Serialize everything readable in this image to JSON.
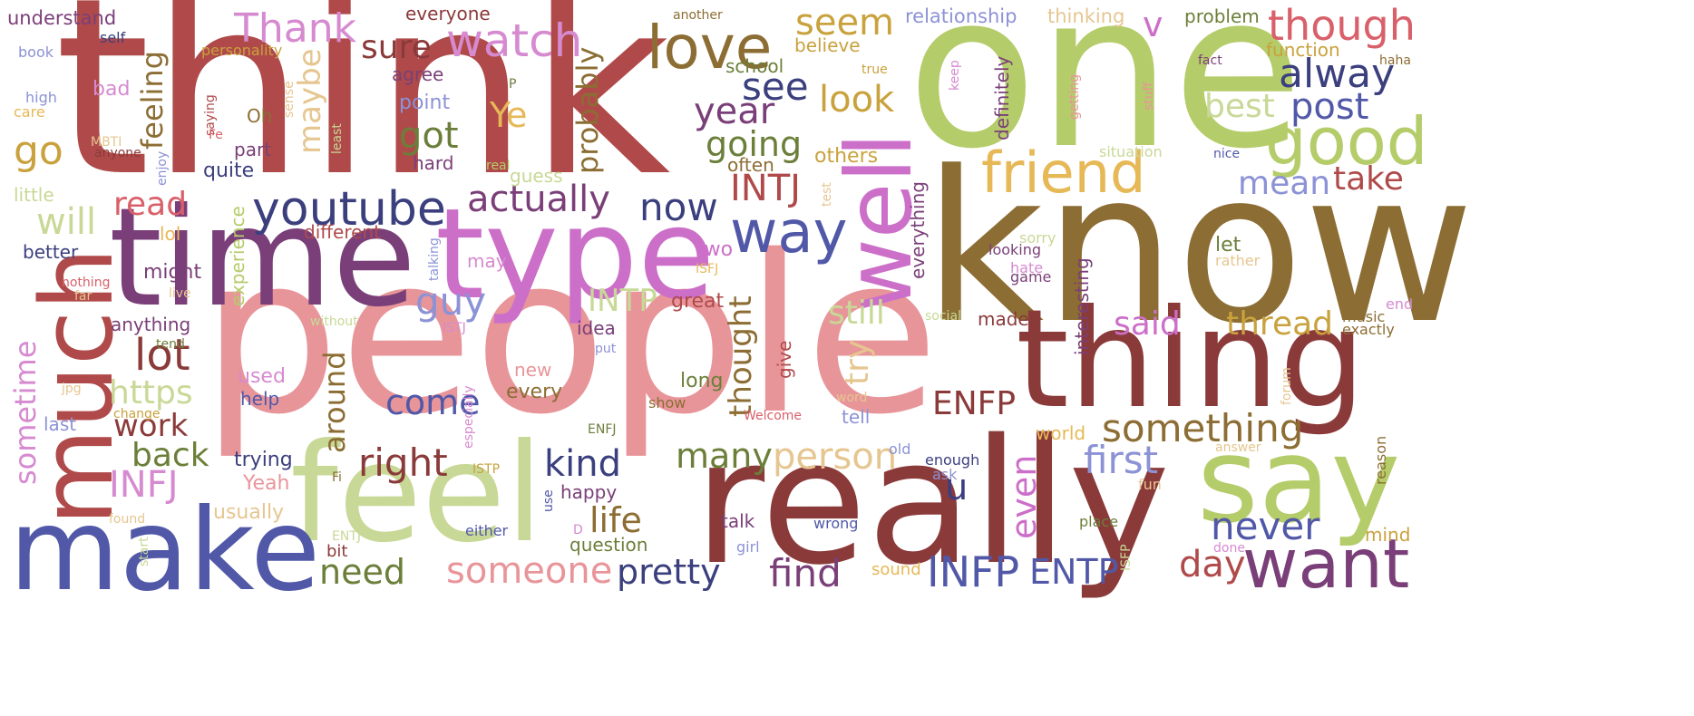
{
  "title": "Word cloud",
  "palette": {
    "maroon": "#8B3A3A",
    "red": "#B04A4A",
    "pink": "#E8959A",
    "rose": "#D9606A",
    "olive_green": "#B5CC6A",
    "pale_green": "#C8D896",
    "dark_olive": "#6B7F3A",
    "brown": "#8C6D33",
    "mustard": "#C9A23D",
    "gold": "#E6B856",
    "tan": "#E6C690",
    "navy": "#3B3F7E",
    "blue": "#5158A8",
    "periwinkle": "#8C92D6",
    "purple": "#7A3F78",
    "orchid": "#CC6FC8",
    "lavender": "#D68AD0"
  },
  "words": [
    {
      "text": "think",
      "color": "#B04A4A"
    },
    {
      "text": "one",
      "color": "#B5CC6A"
    },
    {
      "text": "know",
      "color": "#8C6D33"
    },
    {
      "text": "people",
      "color": "#E8959A"
    },
    {
      "text": "time",
      "color": "#7A3F78"
    },
    {
      "text": "type",
      "color": "#CC6FC8"
    },
    {
      "text": "really",
      "color": "#8B3A3A"
    },
    {
      "text": "thing",
      "color": "#8B3A3A"
    },
    {
      "text": "feel",
      "color": "#C8D896"
    },
    {
      "text": "make",
      "color": "#5158A8"
    },
    {
      "text": "much",
      "color": "#B04A4A"
    },
    {
      "text": "say",
      "color": "#B5CC6A"
    },
    {
      "text": "well",
      "color": "#CC6FC8"
    },
    {
      "text": "want",
      "color": "#7A3F78"
    },
    {
      "text": "love",
      "color": "#8C6D33"
    },
    {
      "text": "watch",
      "color": "#D68AD0"
    },
    {
      "text": "youtube",
      "color": "#3B3F7E"
    },
    {
      "text": "friend",
      "color": "#E6B856"
    },
    {
      "text": "good",
      "color": "#B5CC6A"
    },
    {
      "text": "way",
      "color": "#5158A8"
    },
    {
      "text": "actually",
      "color": "#7A3F78"
    },
    {
      "text": "something",
      "color": "#8C6D33"
    },
    {
      "text": "someone",
      "color": "#E8959A"
    },
    {
      "text": "pretty",
      "color": "#3B3F7E"
    },
    {
      "text": "find",
      "color": "#7A3F78"
    },
    {
      "text": "INFP",
      "color": "#5158A8"
    },
    {
      "text": "ENTP",
      "color": "#5158A8"
    },
    {
      "text": "day",
      "color": "#B04A4A"
    },
    {
      "text": "never",
      "color": "#5158A8"
    },
    {
      "text": "first",
      "color": "#8C92D6"
    },
    {
      "text": "person",
      "color": "#E6C690"
    },
    {
      "text": "many",
      "color": "#6B7F3A"
    },
    {
      "text": "kind",
      "color": "#3B3F7E"
    },
    {
      "text": "right",
      "color": "#8B3A3A"
    },
    {
      "text": "life",
      "color": "#8C6D33"
    },
    {
      "text": "need",
      "color": "#6B7F3A"
    },
    {
      "text": "INFJ",
      "color": "#D68AD0"
    },
    {
      "text": "back",
      "color": "#6B7F3A"
    },
    {
      "text": "work",
      "color": "#8B3A3A"
    },
    {
      "text": "come",
      "color": "#5158A8"
    },
    {
      "text": "https",
      "color": "#C8D896"
    },
    {
      "text": "lot",
      "color": "#8B3A3A"
    },
    {
      "text": "read",
      "color": "#D9606A"
    },
    {
      "text": "will",
      "color": "#C8D896"
    },
    {
      "text": "go",
      "color": "#C9A23D"
    },
    {
      "text": "feeling",
      "color": "#8C6D33"
    },
    {
      "text": "Thank",
      "color": "#D68AD0"
    },
    {
      "text": "sure",
      "color": "#8B3A3A"
    },
    {
      "text": "maybe",
      "color": "#E6C690"
    },
    {
      "text": "got",
      "color": "#6B7F3A"
    },
    {
      "text": "probably",
      "color": "#8C6D33"
    },
    {
      "text": "Ye",
      "color": "#E6B856"
    },
    {
      "text": "going",
      "color": "#6B7F3A"
    },
    {
      "text": "see",
      "color": "#3B3F7E"
    },
    {
      "text": "year",
      "color": "#7A3F78"
    },
    {
      "text": "look",
      "color": "#C9A23D"
    },
    {
      "text": "seem",
      "color": "#C9A23D"
    },
    {
      "text": "INTJ",
      "color": "#B04A4A"
    },
    {
      "text": "now",
      "color": "#3B3F7E"
    },
    {
      "text": "guy",
      "color": "#8C92D6"
    },
    {
      "text": "INTP",
      "color": "#C8D896"
    },
    {
      "text": "thought",
      "color": "#8C6D33"
    },
    {
      "text": "still",
      "color": "#C8D896"
    },
    {
      "text": "try",
      "color": "#E6C690"
    },
    {
      "text": "around",
      "color": "#8C6D33"
    },
    {
      "text": "ENFP",
      "color": "#8B3A3A"
    },
    {
      "text": "even",
      "color": "#CC6FC8"
    },
    {
      "text": "said",
      "color": "#CC6FC8"
    },
    {
      "text": "thread",
      "color": "#C9A23D"
    },
    {
      "text": "u",
      "color": "#3B3F7E"
    },
    {
      "text": "though",
      "color": "#D9606A"
    },
    {
      "text": "alway",
      "color": "#3B3F7E"
    },
    {
      "text": "post",
      "color": "#5158A8"
    },
    {
      "text": "best",
      "color": "#C8D896"
    },
    {
      "text": "mean",
      "color": "#8C92D6"
    },
    {
      "text": "take",
      "color": "#B04A4A"
    },
    {
      "text": "sometime",
      "color": "#D68AD0"
    },
    {
      "text": "v",
      "color": "#CC6FC8"
    },
    {
      "text": "understand",
      "color": "#7A3F78"
    },
    {
      "text": "everyone",
      "color": "#8B3A3A"
    },
    {
      "text": "relationship",
      "color": "#8C92D6"
    },
    {
      "text": "thinking",
      "color": "#E6C690"
    },
    {
      "text": "problem",
      "color": "#6B7F3A"
    },
    {
      "text": "function",
      "color": "#C9A23D"
    },
    {
      "text": "believe",
      "color": "#C9A23D"
    },
    {
      "text": "school",
      "color": "#6B7F3A"
    },
    {
      "text": "agree",
      "color": "#7A3F78"
    },
    {
      "text": "point",
      "color": "#8C92D6"
    },
    {
      "text": "bad",
      "color": "#D68AD0"
    },
    {
      "text": "Oh",
      "color": "#8C6D33"
    },
    {
      "text": "part",
      "color": "#7A3F78"
    },
    {
      "text": "quite",
      "color": "#3B3F7E"
    },
    {
      "text": "hard",
      "color": "#7A3F78"
    },
    {
      "text": "guess",
      "color": "#C8D896"
    },
    {
      "text": "often",
      "color": "#8C6D33"
    },
    {
      "text": "others",
      "color": "#C9A23D"
    },
    {
      "text": "everything",
      "color": "#7A3F78"
    },
    {
      "text": "definitely",
      "color": "#7A3F78"
    },
    {
      "text": "interesting",
      "color": "#7A3F78"
    },
    {
      "text": "little",
      "color": "#C8D896"
    },
    {
      "text": "better",
      "color": "#3B3F7E"
    },
    {
      "text": "different",
      "color": "#B04A4A"
    },
    {
      "text": "lol",
      "color": "#E6B856"
    },
    {
      "text": "might",
      "color": "#7A3F78"
    },
    {
      "text": "experience",
      "color": "#B5CC6A"
    },
    {
      "text": "anything",
      "color": "#7A3F78"
    },
    {
      "text": "idea",
      "color": "#7A3F78"
    },
    {
      "text": "made",
      "color": "#8B3A3A"
    },
    {
      "text": "two",
      "color": "#CC6FC8"
    },
    {
      "text": "great",
      "color": "#B04A4A"
    },
    {
      "text": "may",
      "color": "#D68AD0"
    },
    {
      "text": "give",
      "color": "#B04A4A"
    },
    {
      "text": "used",
      "color": "#D68AD0"
    },
    {
      "text": "help",
      "color": "#5158A8"
    },
    {
      "text": "long",
      "color": "#6B7F3A"
    },
    {
      "text": "new",
      "color": "#E8959A"
    },
    {
      "text": "every",
      "color": "#8C6D33"
    },
    {
      "text": "show",
      "color": "#8C6D33"
    },
    {
      "text": "tell",
      "color": "#8C92D6"
    },
    {
      "text": "trying",
      "color": "#3B3F7E"
    },
    {
      "text": "Yeah",
      "color": "#E8959A"
    },
    {
      "text": "usually",
      "color": "#E6C690"
    },
    {
      "text": "happy",
      "color": "#7A3F78"
    },
    {
      "text": "question",
      "color": "#6B7F3A"
    },
    {
      "text": "talk",
      "color": "#7A3F78"
    },
    {
      "text": "wrong",
      "color": "#5158A8"
    },
    {
      "text": "girl",
      "color": "#8C92D6"
    },
    {
      "text": "world",
      "color": "#E6B856"
    },
    {
      "text": "enough",
      "color": "#3B3F7E"
    },
    {
      "text": "old",
      "color": "#8C92D6"
    },
    {
      "text": "ask",
      "color": "#8C92D6"
    },
    {
      "text": "let",
      "color": "#6B7F3A"
    },
    {
      "text": "rather",
      "color": "#E6C690"
    },
    {
      "text": "looking",
      "color": "#7A3F78"
    },
    {
      "text": "game",
      "color": "#7A3F78"
    },
    {
      "text": "hate",
      "color": "#D68AD0"
    },
    {
      "text": "sorry",
      "color": "#C8D896"
    },
    {
      "text": "music",
      "color": "#8C6D33"
    },
    {
      "text": "exactly",
      "color": "#8C6D33"
    },
    {
      "text": "reason",
      "color": "#8C6D33"
    },
    {
      "text": "mind",
      "color": "#C9A23D"
    },
    {
      "text": "done",
      "color": "#D68AD0"
    },
    {
      "text": "place",
      "color": "#6B7F3A"
    },
    {
      "text": "fun",
      "color": "#E6C690"
    },
    {
      "text": "forum",
      "color": "#E6C690"
    },
    {
      "text": "answer",
      "color": "#E6C690"
    },
    {
      "text": "end",
      "color": "#D68AD0"
    },
    {
      "text": "haha",
      "color": "#8C6D33"
    },
    {
      "text": "fact",
      "color": "#7A3F78"
    },
    {
      "text": "nice",
      "color": "#5158A8"
    },
    {
      "text": "situation",
      "color": "#C8D896"
    },
    {
      "text": "stuff",
      "color": "#E8959A"
    },
    {
      "text": "getting",
      "color": "#E8959A"
    },
    {
      "text": "keep",
      "color": "#D68AD0"
    },
    {
      "text": "true",
      "color": "#C9A23D"
    },
    {
      "text": "another",
      "color": "#8C6D33"
    },
    {
      "text": "book",
      "color": "#8C92D6"
    },
    {
      "text": "self",
      "color": "#3B3F7E"
    },
    {
      "text": "high",
      "color": "#8C92D6"
    },
    {
      "text": "care",
      "color": "#E6B856"
    },
    {
      "text": "personality",
      "color": "#C9A23D"
    },
    {
      "text": "saying",
      "color": "#B04A4A"
    },
    {
      "text": "sense",
      "color": "#E6C690"
    },
    {
      "text": "least",
      "color": "#C8D896"
    },
    {
      "text": "Fe",
      "color": "#D9606A"
    },
    {
      "text": "MBTI",
      "color": "#E6C690"
    },
    {
      "text": "anyone",
      "color": "#8B3A3A"
    },
    {
      "text": "enjoy",
      "color": "#8C92D6"
    },
    {
      "text": "P",
      "color": "#6B7F3A"
    },
    {
      "text": "real",
      "color": "#B5CC6A"
    },
    {
      "text": "test",
      "color": "#E6C690"
    },
    {
      "text": "tend",
      "color": "#6B7F3A"
    },
    {
      "text": "without",
      "color": "#C8D896"
    },
    {
      "text": "ISTJ",
      "color": "#D68AD0"
    },
    {
      "text": "put",
      "color": "#8C92D6"
    },
    {
      "text": "ISFJ",
      "color": "#E6B856"
    },
    {
      "text": "talking",
      "color": "#8C92D6"
    },
    {
      "text": "live",
      "color": "#E6C690"
    },
    {
      "text": "nothing",
      "color": "#D9606A"
    },
    {
      "text": "far",
      "color": "#E6C690"
    },
    {
      "text": "social",
      "color": "#C8D896"
    },
    {
      "text": "last",
      "color": "#8C92D6"
    },
    {
      "text": "jpg",
      "color": "#E6C690"
    },
    {
      "text": "change",
      "color": "#C9A23D"
    },
    {
      "text": "especially",
      "color": "#D68AD0"
    },
    {
      "text": "ENFJ",
      "color": "#6B7F3A"
    },
    {
      "text": "Welcome",
      "color": "#D9606A"
    },
    {
      "text": "word",
      "color": "#E6C690"
    },
    {
      "text": "ISTP",
      "color": "#C9A23D"
    },
    {
      "text": "Fi",
      "color": "#8C6D33"
    },
    {
      "text": "use",
      "color": "#5158A8"
    },
    {
      "text": "either",
      "color": "#5158A8"
    },
    {
      "text": "ENTJ",
      "color": "#C8D896"
    },
    {
      "text": "found",
      "color": "#E6C690"
    },
    {
      "text": "D",
      "color": "#D68AD0"
    },
    {
      "text": "bit",
      "color": "#8B3A3A"
    },
    {
      "text": "start",
      "color": "#C8D896"
    },
    {
      "text": "sound",
      "color": "#E6B856"
    },
    {
      "text": "ISFP",
      "color": "#C8D896"
    }
  ]
}
